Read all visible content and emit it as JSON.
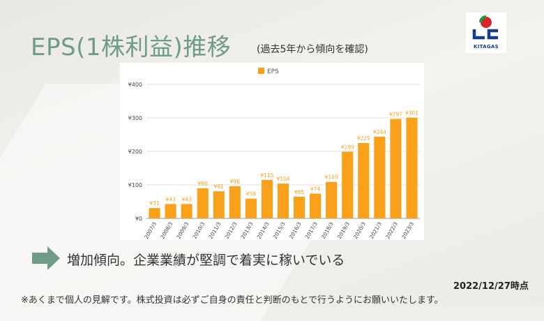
{
  "slide": {
    "title": "EPS(1株利益)推移",
    "subtitle": "(過去5年から傾向を確認)",
    "logo_text": "KITAGAS",
    "statement": "増加傾向。企業業績が堅調で着実に稼いでいる",
    "date": "2022/12/27時点",
    "disclaimer": "※あくまで個人の見解です。株式投資は必ずご自身の責任と判断のもとで行うようにお願いいたします。"
  },
  "colors": {
    "bar": "#f9a11b",
    "title": "#6f9c86",
    "arrow": "#6f9c86"
  },
  "chart_data": {
    "type": "bar",
    "title": "",
    "xlabel": "",
    "ylabel": "",
    "legend": "top",
    "grid": true,
    "ylim": [
      0,
      400
    ],
    "yticks": [
      "¥0",
      "¥100",
      "¥200",
      "¥300",
      "¥400"
    ],
    "categories": [
      "2007/3",
      "2008/3",
      "2009/3",
      "2010/3",
      "2011/3",
      "2012/3",
      "2013/3",
      "2014/3",
      "2015/3",
      "2016/3",
      "2017/3",
      "2018/3",
      "2019/3",
      "2020/3",
      "2021/3",
      "2022/3",
      "2023/3"
    ],
    "series": [
      {
        "name": "EPS",
        "values": [
          31,
          43,
          43,
          90,
          81,
          96,
          59,
          115,
          104,
          65,
          74,
          109,
          199,
          225,
          244,
          297,
          301
        ],
        "labels": [
          "¥31",
          "¥43",
          "¥43",
          "¥90",
          "¥81",
          "¥96",
          "¥59",
          "¥115",
          "¥104",
          "¥65",
          "¥74",
          "¥109",
          "¥199",
          "¥225",
          "¥244",
          "¥297",
          "¥301"
        ]
      }
    ]
  }
}
